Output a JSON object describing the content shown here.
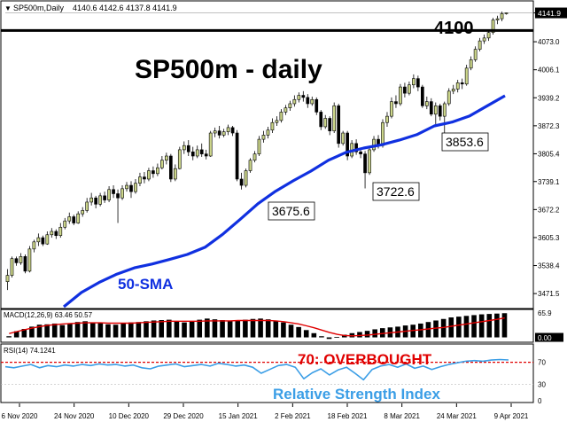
{
  "header": {
    "symbol": "SP500m,Daily",
    "ohlc": "4140.6 4142.6 4137.8 4141.9"
  },
  "annotations": {
    "main_title": "SP500m - daily",
    "level_4100": "4100",
    "sma_label": "50-SMA",
    "rsi_overbought": "70: OVERBOUGHT",
    "rsi_title": "Relative Strength Index",
    "low1": "3675.6",
    "low2": "3722.6",
    "low3": "3853.6"
  },
  "colors": {
    "bull_candle": "#ccd68a",
    "bear_candle": "#000000",
    "sma": "#1030e0",
    "macd_signal": "#e00000",
    "macd_hist": "#000000",
    "rsi_line": "#3b9ee6",
    "overbought": "#e00000",
    "rsi_title": "#3b9ee6"
  },
  "chart_data": [
    {
      "type": "candlestick",
      "title": "SP500m - daily",
      "price_axis": [
        "4141.9",
        "4073.0",
        "4006.1",
        "3939.2",
        "3872.3",
        "3805.4",
        "3739.1",
        "3672.2",
        "3605.3",
        "3538.4",
        "3471.5"
      ],
      "ylim": [
        3440,
        4160
      ],
      "date_axis": [
        "6 Nov 2020",
        "24 Nov 2020",
        "10 Dec 2020",
        "29 Dec 2020",
        "15 Jan 2021",
        "2 Feb 2021",
        "18 Feb 2021",
        "8 Mar 2021",
        "24 Mar 2021",
        "9 Apr 2021"
      ],
      "horizontal_level": 4100,
      "sma_period": 50,
      "sma": [
        3440,
        3474,
        3498,
        3518,
        3533,
        3542,
        3553,
        3565,
        3582,
        3613,
        3649,
        3686,
        3716,
        3741,
        3764,
        3790,
        3809,
        3819,
        3827,
        3838,
        3851,
        3872,
        3881,
        3896,
        3920,
        3944
      ],
      "marked_lows": [
        3675.6,
        3722.6,
        3853.6
      ],
      "candles": [
        [
          3500,
          3515,
          3480,
          3530
        ],
        [
          3515,
          3555,
          3510,
          3560
        ],
        [
          3555,
          3545,
          3538,
          3560
        ],
        [
          3545,
          3560,
          3540,
          3568
        ],
        [
          3560,
          3525,
          3520,
          3565
        ],
        [
          3525,
          3578,
          3522,
          3585
        ],
        [
          3578,
          3595,
          3570,
          3600
        ],
        [
          3595,
          3605,
          3585,
          3615
        ],
        [
          3605,
          3590,
          3585,
          3610
        ],
        [
          3590,
          3612,
          3588,
          3620
        ],
        [
          3612,
          3620,
          3605,
          3628
        ],
        [
          3620,
          3610,
          3602,
          3625
        ],
        [
          3610,
          3630,
          3605,
          3640
        ],
        [
          3630,
          3645,
          3625,
          3652
        ],
        [
          3645,
          3655,
          3638,
          3665
        ],
        [
          3655,
          3640,
          3635,
          3660
        ],
        [
          3640,
          3662,
          3638,
          3668
        ],
        [
          3662,
          3670,
          3655,
          3678
        ],
        [
          3670,
          3690,
          3665,
          3700
        ],
        [
          3690,
          3700,
          3682,
          3712
        ],
        [
          3700,
          3685,
          3675,
          3705
        ],
        [
          3685,
          3705,
          3680,
          3712
        ],
        [
          3705,
          3695,
          3688,
          3715
        ],
        [
          3695,
          3720,
          3690,
          3728
        ],
        [
          3720,
          3710,
          3700,
          3730
        ],
        [
          3710,
          3700,
          3640,
          3720
        ],
        [
          3700,
          3722,
          3695,
          3730
        ],
        [
          3722,
          3730,
          3715,
          3738
        ],
        [
          3730,
          3715,
          3700,
          3740
        ],
        [
          3715,
          3735,
          3710,
          3745
        ],
        [
          3735,
          3750,
          3728,
          3760
        ],
        [
          3750,
          3745,
          3735,
          3762
        ],
        [
          3745,
          3765,
          3740,
          3772
        ],
        [
          3765,
          3758,
          3748,
          3775
        ],
        [
          3758,
          3772,
          3752,
          3782
        ],
        [
          3772,
          3790,
          3768,
          3800
        ],
        [
          3790,
          3800,
          3780,
          3808
        ],
        [
          3800,
          3745,
          3738,
          3805
        ],
        [
          3745,
          3770,
          3740,
          3780
        ],
        [
          3770,
          3815,
          3768,
          3822
        ],
        [
          3815,
          3825,
          3805,
          3835
        ],
        [
          3825,
          3810,
          3800,
          3838
        ],
        [
          3810,
          3800,
          3790,
          3822
        ],
        [
          3800,
          3815,
          3795,
          3825
        ],
        [
          3815,
          3805,
          3798,
          3830
        ],
        [
          3805,
          3800,
          3792,
          3815
        ],
        [
          3800,
          3855,
          3798,
          3860
        ],
        [
          3855,
          3860,
          3845,
          3868
        ],
        [
          3860,
          3850,
          3842,
          3872
        ],
        [
          3850,
          3858,
          3845,
          3865
        ],
        [
          3858,
          3868,
          3850,
          3875
        ],
        [
          3868,
          3855,
          3848,
          3872
        ],
        [
          3855,
          3745,
          3740,
          3862
        ],
        [
          3745,
          3730,
          3720,
          3760
        ],
        [
          3730,
          3765,
          3725,
          3770
        ],
        [
          3765,
          3790,
          3760,
          3795
        ],
        [
          3790,
          3805,
          3785,
          3812
        ],
        [
          3805,
          3840,
          3800,
          3848
        ],
        [
          3840,
          3850,
          3832,
          3860
        ],
        [
          3850,
          3862,
          3842,
          3870
        ],
        [
          3862,
          3880,
          3855,
          3890
        ],
        [
          3880,
          3885,
          3872,
          3895
        ],
        [
          3885,
          3905,
          3880,
          3912
        ],
        [
          3905,
          3915,
          3898,
          3922
        ],
        [
          3915,
          3925,
          3908,
          3932
        ],
        [
          3925,
          3935,
          3918,
          3945
        ],
        [
          3935,
          3945,
          3928,
          3952
        ],
        [
          3945,
          3940,
          3930,
          3955
        ],
        [
          3940,
          3925,
          3915,
          3948
        ],
        [
          3925,
          3935,
          3920,
          3942
        ],
        [
          3935,
          3905,
          3898,
          3940
        ],
        [
          3905,
          3870,
          3862,
          3910
        ],
        [
          3870,
          3890,
          3865,
          3898
        ],
        [
          3890,
          3860,
          3850,
          3895
        ],
        [
          3860,
          3920,
          3855,
          3928
        ],
        [
          3920,
          3830,
          3820,
          3925
        ],
        [
          3830,
          3855,
          3825,
          3860
        ],
        [
          3855,
          3800,
          3790,
          3860
        ],
        [
          3800,
          3830,
          3795,
          3838
        ],
        [
          3830,
          3810,
          3803,
          3840
        ],
        [
          3810,
          3805,
          3795,
          3818
        ],
        [
          3805,
          3760,
          3722.6,
          3812
        ],
        [
          3760,
          3815,
          3755,
          3822
        ],
        [
          3815,
          3840,
          3810,
          3848
        ],
        [
          3840,
          3825,
          3818,
          3850
        ],
        [
          3825,
          3880,
          3820,
          3888
        ],
        [
          3880,
          3895,
          3870,
          3905
        ],
        [
          3895,
          3930,
          3890,
          3940
        ],
        [
          3930,
          3925,
          3915,
          3945
        ],
        [
          3925,
          3965,
          3920,
          3972
        ],
        [
          3965,
          3950,
          3940,
          3975
        ],
        [
          3950,
          3970,
          3945,
          3978
        ],
        [
          3970,
          3985,
          3962,
          3995
        ],
        [
          3985,
          3965,
          3955,
          3992
        ],
        [
          3965,
          3920,
          3915,
          3970
        ],
        [
          3920,
          3930,
          3912,
          3942
        ],
        [
          3930,
          3900,
          3895,
          3938
        ],
        [
          3900,
          3920,
          3870,
          3928
        ],
        [
          3920,
          3895,
          3885,
          3925
        ],
        [
          3895,
          3925,
          3853.6,
          3930
        ],
        [
          3925,
          3955,
          3920,
          3962
        ],
        [
          3955,
          3960,
          3948,
          3970
        ],
        [
          3960,
          3975,
          3952,
          3982
        ],
        [
          3975,
          3972,
          3960,
          3985
        ],
        [
          3972,
          4010,
          3968,
          4018
        ],
        [
          4010,
          4030,
          4005,
          4038
        ],
        [
          4030,
          4055,
          4025,
          4062
        ],
        [
          4055,
          4075,
          4050,
          4082
        ],
        [
          4075,
          4082,
          4068,
          4090
        ],
        [
          4082,
          4095,
          4075,
          4100
        ],
        [
          4095,
          4125,
          4090,
          4130
        ],
        [
          4125,
          4128,
          4115,
          4135
        ],
        [
          4128,
          4140,
          4122,
          4145
        ],
        [
          4140.6,
          4141.9,
          4137.8,
          4142.6
        ]
      ]
    },
    {
      "type": "macd",
      "header": "MACD(12,26,9) 63.46 50.57",
      "axis": [
        "65.9",
        "0.00"
      ],
      "ylim": [
        -8,
        65.9
      ],
      "histogram": [
        3,
        16,
        22,
        28,
        33,
        34,
        36,
        32,
        37,
        40,
        42,
        39,
        37,
        34,
        33,
        36,
        39,
        40,
        42,
        44,
        45,
        46,
        41,
        39,
        41,
        46,
        49,
        47,
        45,
        43,
        44,
        46,
        48,
        49,
        47,
        43,
        39,
        33,
        27,
        19,
        11,
        3,
        -4,
        1,
        7,
        11,
        14,
        17,
        21,
        24,
        26,
        28,
        31,
        33,
        36,
        40,
        44,
        48,
        52,
        54,
        56,
        58,
        60,
        61,
        62,
        63
      ],
      "signal": [
        10,
        15,
        20,
        24,
        28,
        31,
        33,
        35,
        36,
        37,
        38,
        38,
        38,
        37,
        37,
        37,
        37,
        38,
        39,
        40,
        41,
        42,
        42,
        42,
        42,
        42,
        43,
        43,
        43,
        43,
        44,
        44,
        44,
        44,
        44,
        43,
        41,
        38,
        35,
        30,
        25,
        19,
        13,
        8,
        5,
        4,
        5,
        6,
        8,
        10,
        12,
        14,
        16,
        18,
        20,
        22,
        24,
        26,
        29,
        32,
        35,
        38,
        41,
        44,
        47,
        50.57
      ]
    },
    {
      "type": "line",
      "header": "RSI(14) 74.1241",
      "axis": [
        "70",
        "30",
        "0"
      ],
      "ylim": [
        0,
        100
      ],
      "overbought_level": 70,
      "values": [
        62,
        60,
        63,
        66,
        60,
        64,
        62,
        65,
        63,
        66,
        64,
        67,
        65,
        66,
        63,
        65,
        60,
        58,
        63,
        65,
        67,
        62,
        64,
        66,
        63,
        68,
        66,
        63,
        65,
        61,
        50,
        57,
        64,
        66,
        61,
        40,
        51,
        58,
        47,
        56,
        61,
        50,
        38,
        57,
        63,
        66,
        61,
        67,
        59,
        63,
        57,
        62,
        66,
        69,
        72,
        73,
        72,
        74,
        75,
        74.12
      ]
    }
  ]
}
